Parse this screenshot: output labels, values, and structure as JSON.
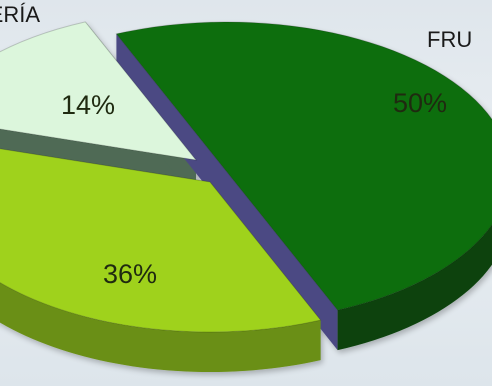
{
  "chart_data": {
    "type": "pie",
    "title": "",
    "slices": [
      {
        "category": "FRU",
        "value": 50,
        "label": "50%",
        "top": "#0f6e0f",
        "side": "#0a430a",
        "cut": "#4b4a83"
      },
      {
        "category": "",
        "value": 36,
        "label": "36%",
        "top": "#9fd21e",
        "side": "#6a8f14",
        "cut": "#5e7656"
      },
      {
        "category": "ERÍA",
        "value": 14,
        "label": "14%",
        "top": "#dcf6dc",
        "side": "#aac4aa",
        "cut": "#4f6a55"
      }
    ]
  }
}
